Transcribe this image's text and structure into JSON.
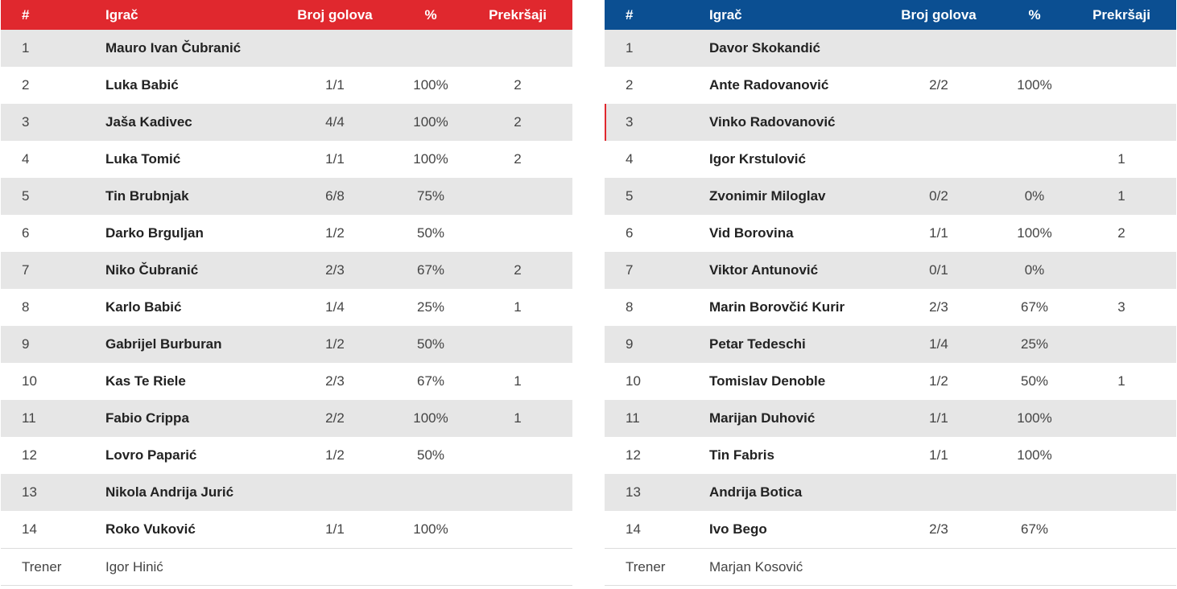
{
  "columns": {
    "num": "#",
    "player": "Igrač",
    "goals": "Broj golova",
    "pct": "%",
    "fouls": "Prekršaji"
  },
  "colors": {
    "home_header": "#e0282e",
    "away_header": "#0b4f92",
    "stripe": "#e6e6e6"
  },
  "coach_label": "Trener",
  "home": {
    "rows": [
      {
        "num": "1",
        "name": "Mauro Ivan Čubranić",
        "goals": "",
        "pct": "",
        "fouls": ""
      },
      {
        "num": "2",
        "name": "Luka Babić",
        "goals": "1/1",
        "pct": "100%",
        "fouls": "2"
      },
      {
        "num": "3",
        "name": "Jaša Kadivec",
        "goals": "4/4",
        "pct": "100%",
        "fouls": "2"
      },
      {
        "num": "4",
        "name": "Luka Tomić",
        "goals": "1/1",
        "pct": "100%",
        "fouls": "2"
      },
      {
        "num": "5",
        "name": "Tin Brubnjak",
        "goals": "6/8",
        "pct": "75%",
        "fouls": ""
      },
      {
        "num": "6",
        "name": "Darko Brguljan",
        "goals": "1/2",
        "pct": "50%",
        "fouls": ""
      },
      {
        "num": "7",
        "name": "Niko Čubranić",
        "goals": "2/3",
        "pct": "67%",
        "fouls": "2"
      },
      {
        "num": "8",
        "name": "Karlo Babić",
        "goals": "1/4",
        "pct": "25%",
        "fouls": "1"
      },
      {
        "num": "9",
        "name": "Gabrijel Burburan",
        "goals": "1/2",
        "pct": "50%",
        "fouls": ""
      },
      {
        "num": "10",
        "name": "Kas Te Riele",
        "goals": "2/3",
        "pct": "67%",
        "fouls": "1"
      },
      {
        "num": "11",
        "name": "Fabio Crippa",
        "goals": "2/2",
        "pct": "100%",
        "fouls": "1"
      },
      {
        "num": "12",
        "name": "Lovro Paparić",
        "goals": "1/2",
        "pct": "50%",
        "fouls": ""
      },
      {
        "num": "13",
        "name": "Nikola Andrija Jurić",
        "goals": "",
        "pct": "",
        "fouls": ""
      },
      {
        "num": "14",
        "name": "Roko Vuković",
        "goals": "1/1",
        "pct": "100%",
        "fouls": ""
      }
    ],
    "coach": "Igor Hinić"
  },
  "away": {
    "rows": [
      {
        "num": "1",
        "name": "Davor Skokandić",
        "goals": "",
        "pct": "",
        "fouls": ""
      },
      {
        "num": "2",
        "name": "Ante Radovanović",
        "goals": "2/2",
        "pct": "100%",
        "fouls": ""
      },
      {
        "num": "3",
        "name": "Vinko Radovanović",
        "goals": "",
        "pct": "",
        "fouls": ""
      },
      {
        "num": "4",
        "name": "Igor Krstulović",
        "goals": "",
        "pct": "",
        "fouls": "1"
      },
      {
        "num": "5",
        "name": "Zvonimir Miloglav",
        "goals": "0/2",
        "pct": "0%",
        "fouls": "1"
      },
      {
        "num": "6",
        "name": "Vid Borovina",
        "goals": "1/1",
        "pct": "100%",
        "fouls": "2"
      },
      {
        "num": "7",
        "name": "Viktor Antunović",
        "goals": "0/1",
        "pct": "0%",
        "fouls": ""
      },
      {
        "num": "8",
        "name": "Marin Borovčić Kurir",
        "goals": "2/3",
        "pct": "67%",
        "fouls": "3"
      },
      {
        "num": "9",
        "name": "Petar Tedeschi",
        "goals": "1/4",
        "pct": "25%",
        "fouls": ""
      },
      {
        "num": "10",
        "name": "Tomislav Denoble",
        "goals": "1/2",
        "pct": "50%",
        "fouls": "1"
      },
      {
        "num": "11",
        "name": "Marijan Duhović",
        "goals": "1/1",
        "pct": "100%",
        "fouls": ""
      },
      {
        "num": "12",
        "name": "Tin Fabris",
        "goals": "1/1",
        "pct": "100%",
        "fouls": ""
      },
      {
        "num": "13",
        "name": "Andrija Botica",
        "goals": "",
        "pct": "",
        "fouls": ""
      },
      {
        "num": "14",
        "name": "Ivo Bego",
        "goals": "2/3",
        "pct": "67%",
        "fouls": ""
      }
    ],
    "coach": "Marjan Kosović"
  }
}
